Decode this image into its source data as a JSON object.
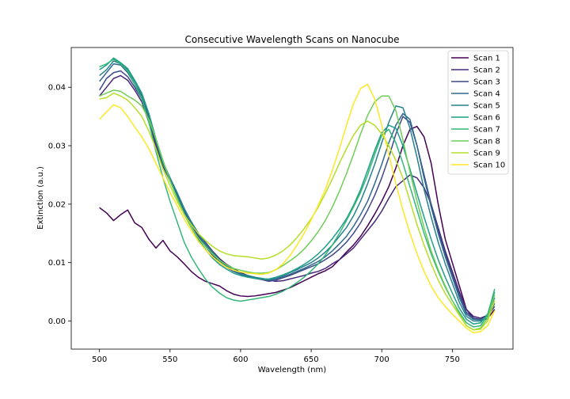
{
  "chart_data": {
    "type": "line",
    "title": "Consecutive Wavelength Scans on Nanocube",
    "xlabel": "Wavelength (nm)",
    "ylabel": "Extinction (a.u.)",
    "xlim": [
      480,
      793
    ],
    "ylim": [
      -0.0048,
      0.0468
    ],
    "x_ticks": [
      500,
      550,
      600,
      650,
      700,
      750
    ],
    "y_ticks": [
      0.0,
      0.01,
      0.02,
      0.03,
      0.04
    ],
    "y_tick_labels": [
      "0.00",
      "0.01",
      "0.02",
      "0.03",
      "0.04"
    ],
    "legend_position": "top-right",
    "grid": false,
    "x": [
      500,
      505,
      510,
      515,
      520,
      525,
      530,
      535,
      540,
      545,
      550,
      555,
      560,
      565,
      570,
      575,
      580,
      585,
      590,
      595,
      600,
      605,
      610,
      615,
      620,
      625,
      630,
      635,
      640,
      645,
      650,
      655,
      660,
      665,
      670,
      675,
      680,
      685,
      690,
      695,
      700,
      705,
      710,
      715,
      720,
      725,
      730,
      735,
      740,
      745,
      750,
      755,
      760,
      765,
      770,
      775,
      780
    ],
    "series": [
      {
        "name": "Scan 1",
        "color": "#440154",
        "values": [
          0.0194,
          0.0185,
          0.0172,
          0.0182,
          0.019,
          0.0168,
          0.016,
          0.014,
          0.0125,
          0.0138,
          0.012,
          0.011,
          0.0098,
          0.0085,
          0.0075,
          0.0068,
          0.0064,
          0.006,
          0.0052,
          0.0046,
          0.0043,
          0.0042,
          0.0043,
          0.0045,
          0.0047,
          0.0049,
          0.0053,
          0.0057,
          0.0063,
          0.0069,
          0.0075,
          0.0081,
          0.0086,
          0.0093,
          0.0105,
          0.0118,
          0.013,
          0.0145,
          0.0163,
          0.0183,
          0.0205,
          0.023,
          0.0262,
          0.03,
          0.0328,
          0.0333,
          0.0315,
          0.027,
          0.02,
          0.014,
          0.01,
          0.006,
          0.002,
          0.0005,
          0.0002,
          0.0004,
          0.002
        ]
      },
      {
        "name": "Scan 2",
        "color": "#482878",
        "values": [
          0.0385,
          0.04,
          0.0415,
          0.042,
          0.0412,
          0.0395,
          0.0375,
          0.034,
          0.03,
          0.0265,
          0.024,
          0.0215,
          0.019,
          0.017,
          0.015,
          0.0135,
          0.012,
          0.0107,
          0.0097,
          0.009,
          0.0083,
          0.0078,
          0.0075,
          0.0072,
          0.007,
          0.0068,
          0.0069,
          0.0072,
          0.0075,
          0.0078,
          0.0082,
          0.0085,
          0.009,
          0.0098,
          0.0105,
          0.0115,
          0.0125,
          0.014,
          0.0155,
          0.017,
          0.0188,
          0.021,
          0.023,
          0.024,
          0.025,
          0.0245,
          0.0228,
          0.02,
          0.016,
          0.012,
          0.0085,
          0.005,
          0.002,
          0.0008,
          0.0005,
          0.001,
          0.003
        ]
      },
      {
        "name": "Scan 3",
        "color": "#3e4989",
        "values": [
          0.0395,
          0.0415,
          0.0425,
          0.0428,
          0.0418,
          0.04,
          0.038,
          0.0345,
          0.0305,
          0.0268,
          0.0243,
          0.0215,
          0.0188,
          0.0165,
          0.0145,
          0.0128,
          0.0113,
          0.01,
          0.0092,
          0.0085,
          0.008,
          0.0076,
          0.0073,
          0.0071,
          0.0068,
          0.007,
          0.0074,
          0.0078,
          0.0083,
          0.0088,
          0.0093,
          0.0098,
          0.0105,
          0.0113,
          0.0123,
          0.0135,
          0.015,
          0.0168,
          0.019,
          0.0215,
          0.0245,
          0.028,
          0.032,
          0.035,
          0.034,
          0.03,
          0.025,
          0.02,
          0.0155,
          0.0115,
          0.008,
          0.0045,
          0.0015,
          0.0005,
          0.0003,
          0.0008,
          0.0025
        ]
      },
      {
        "name": "Scan 4",
        "color": "#31688e",
        "values": [
          0.041,
          0.0425,
          0.044,
          0.0438,
          0.0425,
          0.0405,
          0.0385,
          0.035,
          0.031,
          0.027,
          0.0245,
          0.0218,
          0.019,
          0.0168,
          0.0148,
          0.013,
          0.0115,
          0.0103,
          0.0094,
          0.0086,
          0.008,
          0.0077,
          0.0074,
          0.0072,
          0.007,
          0.0072,
          0.0076,
          0.008,
          0.0085,
          0.009,
          0.0096,
          0.0102,
          0.011,
          0.012,
          0.0132,
          0.0145,
          0.0162,
          0.0182,
          0.0205,
          0.0235,
          0.0268,
          0.0305,
          0.0335,
          0.0355,
          0.0345,
          0.03,
          0.0245,
          0.0195,
          0.015,
          0.011,
          0.0075,
          0.004,
          0.0012,
          0.0003,
          0.0002,
          0.0008,
          0.003
        ]
      },
      {
        "name": "Scan 5",
        "color": "#26828e",
        "values": [
          0.042,
          0.043,
          0.0445,
          0.044,
          0.043,
          0.041,
          0.0388,
          0.0355,
          0.0312,
          0.0272,
          0.0245,
          0.022,
          0.0193,
          0.017,
          0.015,
          0.0133,
          0.0118,
          0.0105,
          0.0095,
          0.0087,
          0.0081,
          0.0078,
          0.0075,
          0.0073,
          0.0071,
          0.0074,
          0.0078,
          0.0083,
          0.0088,
          0.0094,
          0.01,
          0.0108,
          0.0118,
          0.013,
          0.0145,
          0.016,
          0.018,
          0.0205,
          0.0235,
          0.0268,
          0.0305,
          0.034,
          0.0368,
          0.0365,
          0.033,
          0.028,
          0.0225,
          0.0178,
          0.0135,
          0.0098,
          0.0065,
          0.0032,
          0.0008,
          0.0,
          0.0,
          0.001,
          0.004
        ]
      },
      {
        "name": "Scan 6",
        "color": "#1f9e89",
        "values": [
          0.043,
          0.0438,
          0.045,
          0.0442,
          0.0432,
          0.0412,
          0.039,
          0.0355,
          0.031,
          0.027,
          0.024,
          0.0212,
          0.0185,
          0.016,
          0.014,
          0.0123,
          0.0108,
          0.0097,
          0.0089,
          0.0082,
          0.0078,
          0.0075,
          0.0073,
          0.0072,
          0.0072,
          0.0075,
          0.0079,
          0.0084,
          0.009,
          0.0097,
          0.0105,
          0.0115,
          0.0127,
          0.0141,
          0.0157,
          0.0175,
          0.0198,
          0.0225,
          0.0258,
          0.0292,
          0.0322,
          0.0335,
          0.033,
          0.03,
          0.026,
          0.0218,
          0.0178,
          0.014,
          0.0105,
          0.0075,
          0.0048,
          0.0022,
          0.0003,
          -0.0005,
          -0.0003,
          0.0012,
          0.005
        ]
      },
      {
        "name": "Scan 7",
        "color": "#35b779",
        "values": [
          0.0435,
          0.044,
          0.0448,
          0.044,
          0.0428,
          0.0405,
          0.038,
          0.034,
          0.029,
          0.0245,
          0.0205,
          0.017,
          0.0135,
          0.011,
          0.009,
          0.0072,
          0.0058,
          0.0048,
          0.004,
          0.0036,
          0.0034,
          0.0036,
          0.0038,
          0.004,
          0.0042,
          0.0046,
          0.0051,
          0.0058,
          0.0066,
          0.0075,
          0.0086,
          0.0098,
          0.0113,
          0.013,
          0.015,
          0.0172,
          0.0195,
          0.022,
          0.025,
          0.0285,
          0.0318,
          0.0328,
          0.0305,
          0.027,
          0.023,
          0.019,
          0.015,
          0.0115,
          0.0085,
          0.0058,
          0.0035,
          0.0015,
          -0.0003,
          -0.001,
          -0.0008,
          0.001,
          0.0055
        ]
      },
      {
        "name": "Scan 8",
        "color": "#6ece58",
        "values": [
          0.0385,
          0.039,
          0.0395,
          0.0393,
          0.0385,
          0.0378,
          0.0368,
          0.0345,
          0.0312,
          0.0275,
          0.024,
          0.021,
          0.0182,
          0.016,
          0.0142,
          0.0128,
          0.0115,
          0.0104,
          0.0096,
          0.009,
          0.0087,
          0.0084,
          0.0082,
          0.0082,
          0.0083,
          0.0088,
          0.0095,
          0.0103,
          0.0112,
          0.0123,
          0.0137,
          0.0153,
          0.0172,
          0.0195,
          0.0222,
          0.0252,
          0.0285,
          0.032,
          0.0352,
          0.0375,
          0.0385,
          0.0385,
          0.036,
          0.031,
          0.0255,
          0.0205,
          0.016,
          0.012,
          0.0088,
          0.006,
          0.0035,
          0.0012,
          -0.0008,
          -0.0015,
          -0.0012,
          0.0005,
          0.0045
        ]
      },
      {
        "name": "Scan 9",
        "color": "#b5de2b",
        "values": [
          0.038,
          0.0382,
          0.039,
          0.0385,
          0.0378,
          0.0365,
          0.035,
          0.0325,
          0.0295,
          0.026,
          0.0232,
          0.0205,
          0.0182,
          0.0165,
          0.015,
          0.0138,
          0.0128,
          0.012,
          0.0115,
          0.0112,
          0.0111,
          0.011,
          0.0108,
          0.0106,
          0.0108,
          0.0113,
          0.012,
          0.013,
          0.0143,
          0.0158,
          0.0175,
          0.0195,
          0.0218,
          0.0243,
          0.027,
          0.0295,
          0.0318,
          0.0335,
          0.0342,
          0.0335,
          0.032,
          0.03,
          0.0275,
          0.0245,
          0.0205,
          0.0165,
          0.013,
          0.0098,
          0.007,
          0.0047,
          0.0028,
          0.001,
          -0.0008,
          -0.0015,
          -0.0014,
          0.0,
          0.0035
        ]
      },
      {
        "name": "Scan 10",
        "color": "#fde725",
        "values": [
          0.0345,
          0.0358,
          0.037,
          0.0365,
          0.035,
          0.0332,
          0.0315,
          0.0295,
          0.027,
          0.0245,
          0.022,
          0.0198,
          0.0175,
          0.0155,
          0.0137,
          0.0122,
          0.011,
          0.01,
          0.0092,
          0.0087,
          0.0084,
          0.0082,
          0.0081,
          0.008,
          0.0082,
          0.0088,
          0.0098,
          0.0112,
          0.013,
          0.015,
          0.0173,
          0.0198,
          0.0225,
          0.0258,
          0.0295,
          0.0335,
          0.0372,
          0.0398,
          0.0405,
          0.038,
          0.0335,
          0.0285,
          0.0235,
          0.019,
          0.015,
          0.0115,
          0.0085,
          0.006,
          0.004,
          0.0025,
          0.0012,
          0.0,
          -0.0012,
          -0.002,
          -0.0018,
          -0.0008,
          0.0018
        ]
      }
    ]
  }
}
